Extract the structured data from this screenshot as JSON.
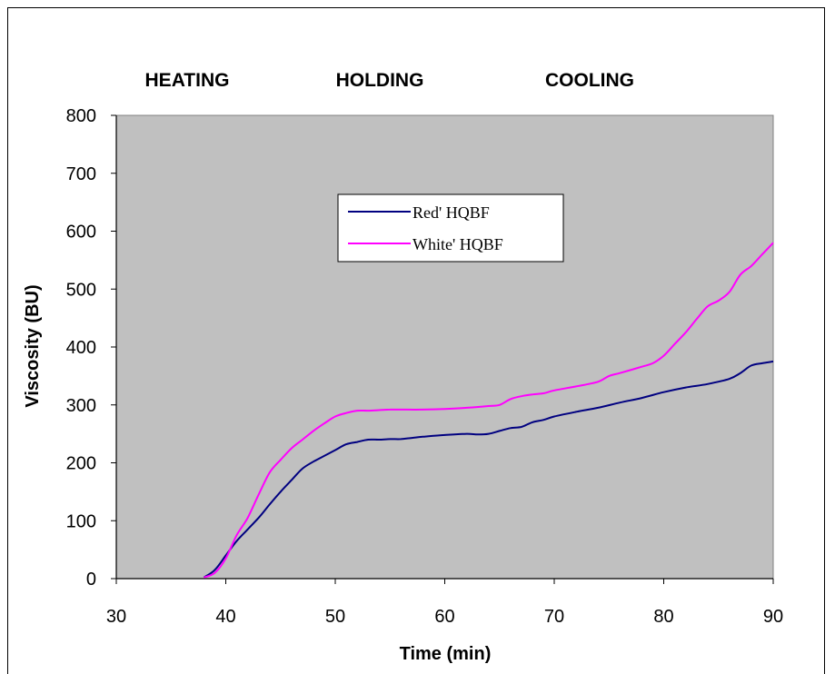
{
  "chart_data": {
    "type": "line",
    "phases": [
      "HEATING",
      "HOLDING",
      "COOLING"
    ],
    "xlabel": "Time (min)",
    "ylabel": "Viscosity (BU)",
    "xlim": [
      30,
      90
    ],
    "ylim": [
      0,
      800
    ],
    "xticks": [
      "30",
      "40",
      "50",
      "60",
      "70",
      "80",
      "90"
    ],
    "yticks": [
      "0",
      "100",
      "200",
      "300",
      "400",
      "500",
      "600",
      "700",
      "800"
    ],
    "legend_position": "center-upper",
    "plot_background": "#c0c0c0",
    "series": [
      {
        "name": "Red' HQBF",
        "color": "#000080",
        "x": [
          38,
          39,
          40,
          41,
          42,
          43,
          44,
          45,
          46,
          47,
          48,
          49,
          50,
          51,
          52,
          53,
          54,
          55,
          56,
          57,
          58,
          60,
          62,
          63,
          64,
          65,
          66,
          67,
          68,
          69,
          70,
          72,
          74,
          76,
          78,
          80,
          82,
          84,
          86,
          87,
          88,
          89,
          90
        ],
        "y": [
          2,
          15,
          40,
          65,
          85,
          105,
          128,
          150,
          170,
          190,
          202,
          212,
          222,
          232,
          236,
          240,
          240,
          241,
          241,
          243,
          245,
          248,
          250,
          249,
          250,
          255,
          260,
          262,
          270,
          274,
          280,
          288,
          295,
          304,
          312,
          322,
          330,
          336,
          345,
          355,
          368,
          372,
          375
        ]
      },
      {
        "name": "White' HQBF",
        "color": "#ff00ff",
        "x": [
          38,
          39,
          40,
          41,
          42,
          43,
          44,
          45,
          46,
          47,
          48,
          49,
          50,
          51,
          52,
          53,
          54,
          55,
          56,
          58,
          60,
          62,
          64,
          65,
          66,
          67,
          68,
          69,
          70,
          72,
          74,
          75,
          76,
          78,
          79,
          80,
          81,
          82,
          83,
          84,
          85,
          86,
          87,
          88,
          89,
          90
        ],
        "y": [
          2,
          10,
          35,
          75,
          105,
          145,
          183,
          205,
          225,
          240,
          255,
          268,
          280,
          286,
          290,
          290,
          291,
          292,
          292,
          292,
          293,
          295,
          298,
          300,
          310,
          315,
          318,
          320,
          325,
          332,
          340,
          350,
          355,
          366,
          372,
          385,
          405,
          425,
          448,
          470,
          480,
          495,
          525,
          540,
          560,
          580
        ]
      }
    ]
  }
}
